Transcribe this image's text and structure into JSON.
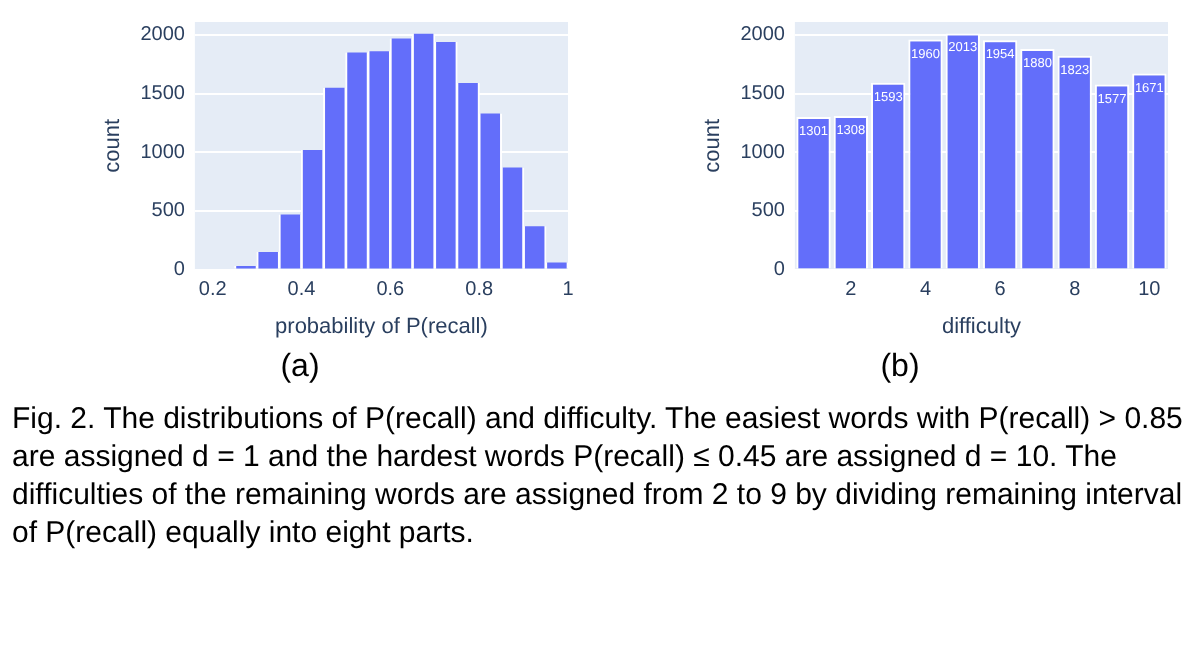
{
  "chart_data": [
    {
      "type": "histogram",
      "xlabel": "probability of P(recall)",
      "ylabel": "count",
      "color": "#636efa",
      "bins": [
        0.2,
        0.25,
        0.3,
        0.35,
        0.4,
        0.45,
        0.5,
        0.55,
        0.6,
        0.65,
        0.7,
        0.75,
        0.8,
        0.85,
        0.9,
        0.95,
        1.0
      ],
      "values": [
        0,
        30,
        150,
        470,
        1020,
        1550,
        1850,
        1860,
        1970,
        2010,
        1940,
        1590,
        1330,
        870,
        370,
        60
      ],
      "xlim": [
        0.16,
        1.0
      ],
      "xticks": [
        0.2,
        0.4,
        0.6,
        0.8,
        1
      ],
      "ylim": [
        0,
        2110
      ],
      "yticks": [
        0,
        500,
        1000,
        1500,
        2000
      ],
      "grid": "y",
      "annotations": [
        "(a)"
      ]
    },
    {
      "type": "bar",
      "xlabel": "difficulty",
      "ylabel": "count",
      "color": "#636efa",
      "x": [
        1,
        2,
        3,
        4,
        5,
        6,
        7,
        8,
        9,
        10
      ],
      "values": [
        1301,
        1308,
        1593,
        1960,
        2013,
        1954,
        1880,
        1823,
        1577,
        1671
      ],
      "xlim": [
        0.5,
        10.5
      ],
      "xticks": [
        2,
        4,
        6,
        8,
        10
      ],
      "ylim": [
        0,
        2110
      ],
      "yticks": [
        0,
        500,
        1000,
        1500,
        2000
      ],
      "grid": "y",
      "data_labels": true,
      "annotations": [
        "(b)",
        "Fig. 2. The distributions of P(recall) and difficulty. The easiest words with P(recall) > 0.85 are assigned d = 1 and the hardest words P(recall) ≤ 0.45 are assigned d = 10. The difficulties of the remaining words are assigned from 2 to 9 by dividing remaining interval of P(recall) equally into eight parts."
      ]
    }
  ]
}
